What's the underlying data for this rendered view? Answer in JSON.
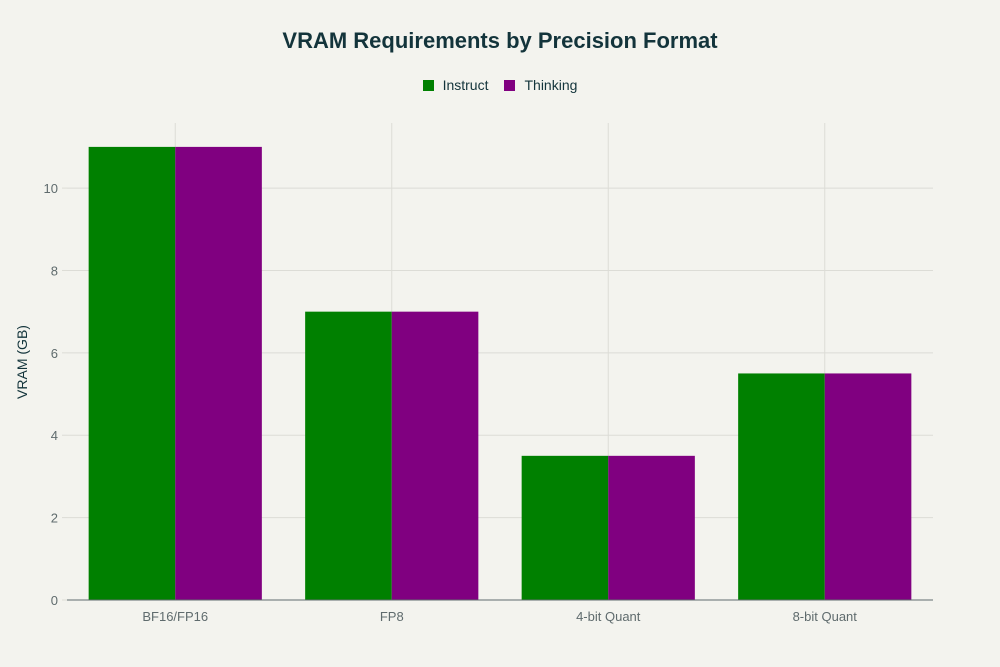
{
  "chart_data": {
    "type": "bar",
    "title": "VRAM Requirements by Precision Format",
    "xlabel": "",
    "ylabel": "VRAM (GB)",
    "categories": [
      "BF16/FP16",
      "FP8",
      "4-bit Quant",
      "8-bit Quant"
    ],
    "series": [
      {
        "name": "Instruct",
        "color": "#008000",
        "values": [
          11,
          7,
          3.5,
          5.5
        ]
      },
      {
        "name": "Thinking",
        "color": "#800080",
        "values": [
          11,
          7,
          3.5,
          5.5
        ]
      }
    ],
    "ylim": [
      0,
      11.58
    ],
    "yticks": [
      0,
      2,
      4,
      6,
      8,
      10
    ],
    "grid": true,
    "legend": "top-center"
  }
}
